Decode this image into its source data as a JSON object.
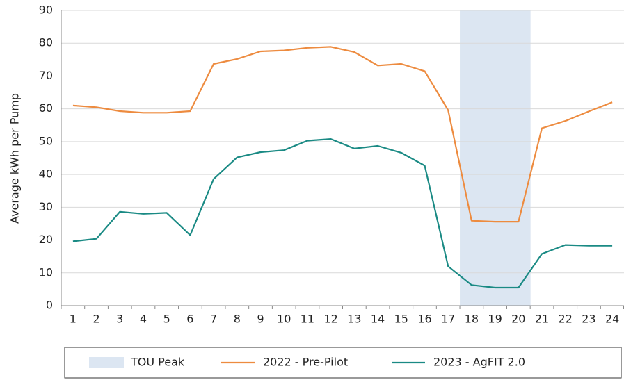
{
  "chart_data": {
    "type": "line",
    "y_label": "Average kWh per Pump",
    "categories": [
      "1",
      "2",
      "3",
      "4",
      "5",
      "6",
      "7",
      "8",
      "9",
      "10",
      "11",
      "12",
      "13",
      "14",
      "15",
      "16",
      "17",
      "18",
      "19",
      "20",
      "21",
      "22",
      "23",
      "24"
    ],
    "series": [
      {
        "name": "TOU Peak",
        "type": "bar",
        "color": "#dce6f2",
        "values": [
          null,
          null,
          null,
          null,
          null,
          null,
          null,
          null,
          null,
          null,
          null,
          null,
          null,
          null,
          null,
          null,
          null,
          90,
          90,
          90,
          null,
          null,
          null,
          null
        ]
      },
      {
        "name": "2022 - Pre-Pilot",
        "type": "line",
        "color": "#ed8b3f",
        "values": [
          61,
          60.5,
          59.3,
          58.8,
          58.8,
          59.3,
          73.7,
          75.2,
          77.5,
          77.8,
          78.6,
          78.9,
          77.3,
          73.2,
          73.7,
          71.5,
          59.6,
          25.9,
          25.6,
          25.6,
          54.1,
          56.3,
          59.2,
          62
        ]
      },
      {
        "name": "2023 - AgFIT 2.0",
        "type": "line",
        "color": "#1a8a84",
        "values": [
          19.6,
          20.4,
          28.6,
          28,
          28.3,
          21.5,
          38.6,
          45.2,
          46.8,
          47.4,
          50.3,
          50.8,
          47.9,
          48.7,
          46.6,
          42.7,
          12,
          6.3,
          5.5,
          5.5,
          15.8,
          18.5,
          18.3,
          18.3
        ]
      }
    ],
    "ylim": [
      0,
      90
    ],
    "yticks": [
      0,
      10,
      20,
      30,
      40,
      50,
      60,
      70,
      80,
      90
    ],
    "grid": true,
    "legend": "bottom"
  }
}
